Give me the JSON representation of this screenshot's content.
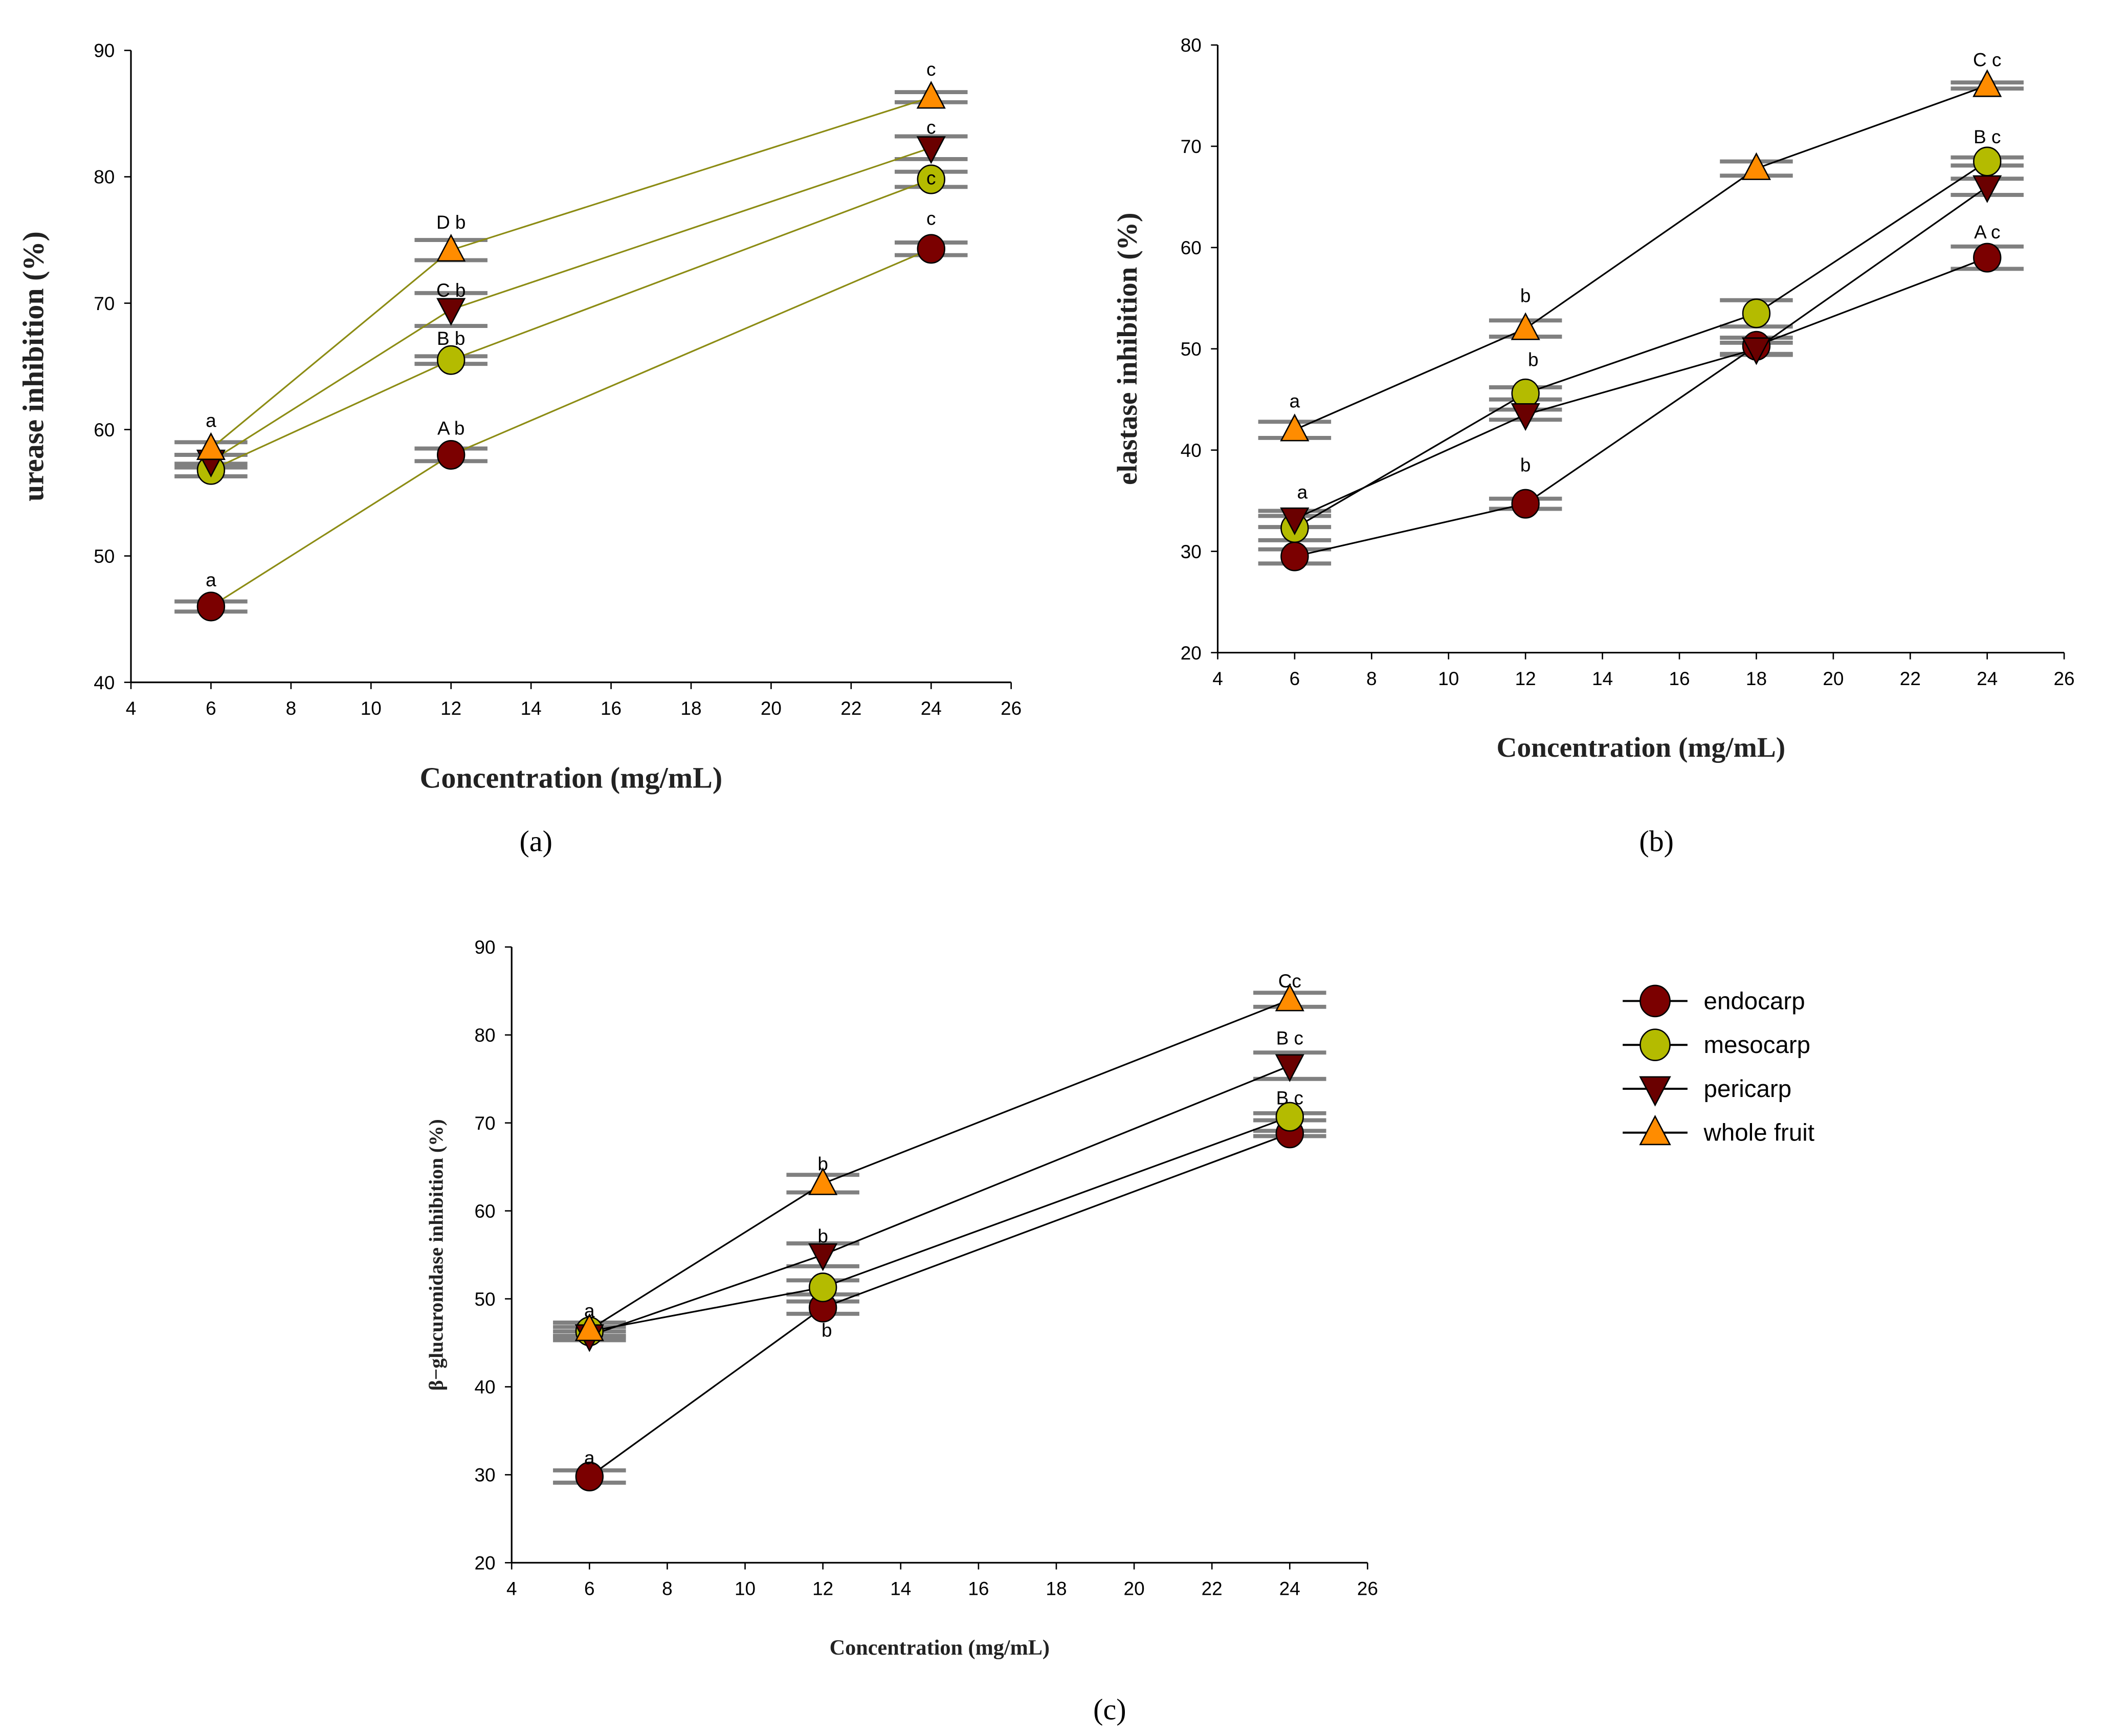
{
  "colors": {
    "endocarp": "#7b0000",
    "mesocarp": "#b4bb00",
    "pericarp": "#6a0000",
    "whole fruit": "#ff8c00",
    "err": "#808080"
  },
  "legend": {
    "items": [
      "endocarp",
      "mesocarp",
      "pericarp",
      "whole fruit"
    ]
  },
  "chart_data": [
    {
      "type": "line",
      "panel": "(a)",
      "xlabel": "Concentration (mg/mL)",
      "ylabel": "urease inhibition (%)",
      "xlim": [
        4,
        26
      ],
      "ylim": [
        40,
        90
      ],
      "xticks": [
        4,
        6,
        8,
        10,
        12,
        14,
        16,
        18,
        20,
        22,
        24,
        26
      ],
      "yticks": [
        40,
        50,
        60,
        70,
        80,
        90
      ],
      "line_color": "#8c8c14",
      "x": [
        6,
        12,
        24
      ],
      "series": [
        {
          "name": "endocarp",
          "values": [
            46,
            58,
            74.3
          ],
          "err": [
            0.4,
            0.5,
            0.5
          ]
        },
        {
          "name": "mesocarp",
          "values": [
            56.8,
            65.5,
            79.8
          ],
          "err": [
            0.5,
            0.3,
            0.6
          ]
        },
        {
          "name": "pericarp",
          "values": [
            57.5,
            69.5,
            82.3
          ],
          "err": [
            0.5,
            1.3,
            0.9
          ]
        },
        {
          "name": "whole fruit",
          "values": [
            58.5,
            74.2,
            86.3
          ],
          "err": [
            0.5,
            0.8,
            0.4
          ]
        }
      ],
      "annotations": [
        {
          "x": 6,
          "y": 60.2,
          "text": "a"
        },
        {
          "x": 6,
          "y": 47.6,
          "text": "a"
        },
        {
          "x": 12,
          "y": 75.9,
          "text": "D b"
        },
        {
          "x": 12,
          "y": 70.5,
          "text": "C b"
        },
        {
          "x": 12,
          "y": 66.7,
          "text": "B b"
        },
        {
          "x": 12,
          "y": 59.6,
          "text": "A b"
        },
        {
          "x": 24,
          "y": 88,
          "text": "c"
        },
        {
          "x": 24,
          "y": 83.4,
          "text": "c"
        },
        {
          "x": 24,
          "y": 79.4,
          "text": "c"
        },
        {
          "x": 24,
          "y": 76.2,
          "text": "c"
        }
      ]
    },
    {
      "type": "line",
      "panel": "(b)",
      "xlabel": "Concentration (mg/mL)",
      "ylabel": "elastase inhibition (%)",
      "xlim": [
        4,
        26
      ],
      "ylim": [
        20,
        80
      ],
      "xticks": [
        4,
        6,
        8,
        10,
        12,
        14,
        16,
        18,
        20,
        22,
        24,
        26
      ],
      "yticks": [
        20,
        30,
        40,
        50,
        60,
        70,
        80
      ],
      "line_color": "#000000",
      "x": [
        6,
        12,
        18,
        24
      ],
      "series": [
        {
          "name": "endocarp",
          "values": [
            29.5,
            34.7,
            50.3,
            59
          ],
          "err": [
            0.7,
            0.5,
            0.8,
            1.1
          ]
        },
        {
          "name": "mesocarp",
          "values": [
            32.3,
            45.6,
            53.5,
            68.5
          ],
          "err": [
            1.2,
            0.6,
            1.3,
            0.4
          ]
        },
        {
          "name": "pericarp",
          "values": [
            33.2,
            43.5,
            50,
            66
          ],
          "err": [
            0.8,
            0.5,
            0.6,
            0.8
          ]
        },
        {
          "name": "whole fruit",
          "values": [
            42,
            52,
            67.8,
            76
          ],
          "err": [
            0.8,
            0.8,
            0.7,
            0.3
          ]
        }
      ],
      "annotations": [
        {
          "x": 6,
          "y": 44.2,
          "text": "a"
        },
        {
          "x": 6.2,
          "y": 35.2,
          "text": "a"
        },
        {
          "x": 12,
          "y": 54.6,
          "text": "b"
        },
        {
          "x": 12.2,
          "y": 48.3,
          "text": "b"
        },
        {
          "x": 12,
          "y": 37.9,
          "text": "b"
        },
        {
          "x": 24,
          "y": 77.9,
          "text": "C c"
        },
        {
          "x": 24,
          "y": 70.3,
          "text": "B c"
        },
        {
          "x": 24,
          "y": 60.9,
          "text": "A c"
        }
      ]
    },
    {
      "type": "line",
      "panel": "(c)",
      "xlabel": "Concentration (mg/mL)",
      "ylabel": "β−glucuronidase inhibition (%)",
      "xlim": [
        4,
        26
      ],
      "ylim": [
        20,
        90
      ],
      "xticks": [
        4,
        6,
        8,
        10,
        12,
        14,
        16,
        18,
        20,
        22,
        24,
        26
      ],
      "yticks": [
        20,
        30,
        40,
        50,
        60,
        70,
        80,
        90
      ],
      "line_color": "#000000",
      "x": [
        6,
        12,
        24
      ],
      "series": [
        {
          "name": "endocarp",
          "values": [
            29.8,
            49,
            68.8
          ],
          "err": [
            0.7,
            0.7,
            0.3
          ]
        },
        {
          "name": "mesocarp",
          "values": [
            46.3,
            51.3,
            70.7
          ],
          "err": [
            0.5,
            0.8,
            0.4
          ]
        },
        {
          "name": "pericarp",
          "values": [
            45.8,
            55,
            76.5
          ],
          "err": [
            0.5,
            1.3,
            1.5
          ]
        },
        {
          "name": "whole fruit",
          "values": [
            46.5,
            63.1,
            84
          ],
          "err": [
            0.8,
            1.0,
            0.8
          ]
        }
      ],
      "annotations": [
        {
          "x": 6,
          "y": 47.9,
          "text": "a"
        },
        {
          "x": 6,
          "y": 31.2,
          "text": "a"
        },
        {
          "x": 12,
          "y": 64.6,
          "text": "b"
        },
        {
          "x": 12,
          "y": 56.4,
          "text": "b"
        },
        {
          "x": 12.1,
          "y": 45.7,
          "text": "b"
        },
        {
          "x": 24,
          "y": 85.4,
          "text": "Cc"
        },
        {
          "x": 24,
          "y": 78.9,
          "text": "B  c"
        },
        {
          "x": 24,
          "y": 72.1,
          "text": "B  c"
        }
      ]
    }
  ]
}
